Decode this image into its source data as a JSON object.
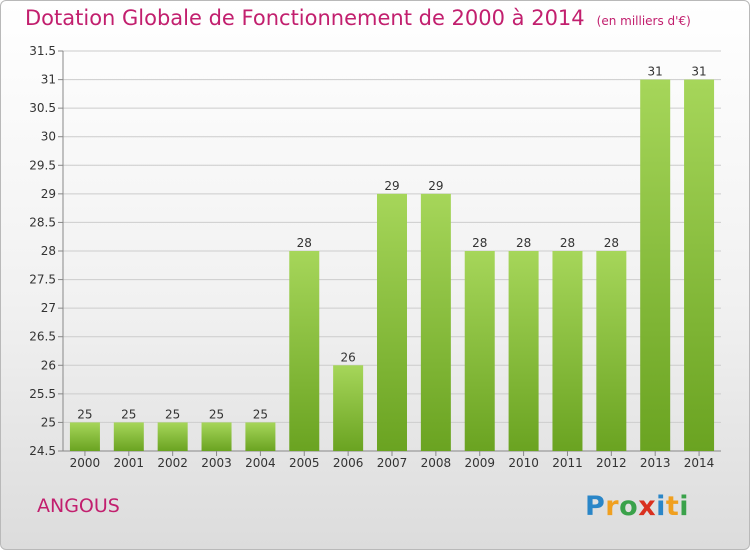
{
  "title": "Dotation Globale de Fonctionnement de 2000 à 2014",
  "unit_note": "(en milliers d'€)",
  "commune": "ANGOUS",
  "logo": {
    "letters": [
      "P",
      "r",
      "o",
      "x",
      "i",
      "t",
      "i"
    ],
    "colors": [
      "#2a86c8",
      "#f0a020",
      "#3aa24a",
      "#d9301f",
      "#2a86c8",
      "#f0a020",
      "#3aa24a"
    ]
  },
  "colors": {
    "title": "#c21f6e",
    "bar_light": "#a6d65a",
    "bar_dark": "#6aa321",
    "grid": "#cccccc"
  },
  "chart_data": {
    "type": "bar",
    "categories": [
      "2000",
      "2001",
      "2002",
      "2003",
      "2004",
      "2005",
      "2006",
      "2007",
      "2008",
      "2009",
      "2010",
      "2011",
      "2012",
      "2013",
      "2014"
    ],
    "values": [
      25,
      25,
      25,
      25,
      25,
      28,
      26,
      29,
      29,
      28,
      28,
      28,
      28,
      31,
      31
    ],
    "labels": [
      "25",
      "25",
      "25",
      "25",
      "25",
      "28",
      "26",
      "29",
      "29",
      "28",
      "28",
      "28",
      "28",
      "31",
      "31"
    ],
    "yticks": [
      "24.5",
      "25",
      "25.5",
      "26",
      "26.5",
      "27",
      "27.5",
      "28",
      "28.5",
      "29",
      "29.5",
      "30",
      "30.5",
      "31",
      "31.5"
    ],
    "ylim": [
      24.5,
      31.5
    ],
    "grid": true
  }
}
